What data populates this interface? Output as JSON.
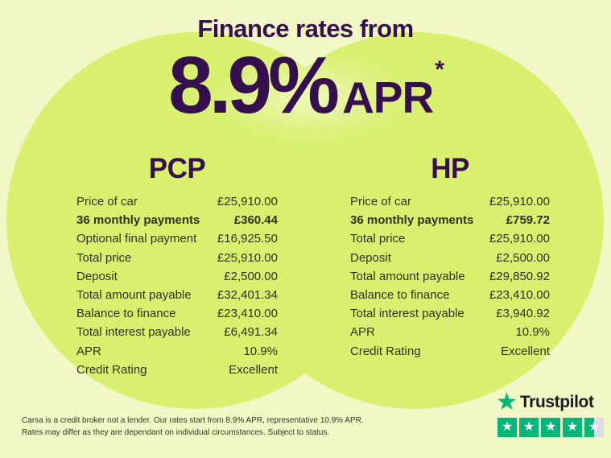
{
  "colors": {
    "background_pale": "#F1F8C5",
    "circle_lime": "#D8F06E",
    "heading_purple": "#36104E",
    "table_ink": "#2E321B",
    "tp_green": "#00B67A",
    "tp_gray": "#DCDCE6",
    "tp_word_dark": "#1B1B21"
  },
  "header": {
    "title": "Finance rates from",
    "rate": "8.9%",
    "rate_label": "APR",
    "asterisk": "*"
  },
  "pcp": {
    "heading": "PCP",
    "rows": [
      {
        "label": "Price of car",
        "value": "£25,910.00",
        "bold": false
      },
      {
        "label": "36 monthly payments",
        "value": "£360.44",
        "bold": true
      },
      {
        "label": "Optional final payment",
        "value": "£16,925.50",
        "bold": false
      },
      {
        "label": "Total price",
        "value": "£25,910.00",
        "bold": false
      },
      {
        "label": "Deposit",
        "value": "£2,500.00",
        "bold": false
      },
      {
        "label": "Total amount payable",
        "value": "£32,401.34",
        "bold": false
      },
      {
        "label": "Balance to finance",
        "value": "£23,410.00",
        "bold": false
      },
      {
        "label": "Total interest payable",
        "value": "£6,491.34",
        "bold": false
      },
      {
        "label": "APR",
        "value": "10.9%",
        "bold": false
      },
      {
        "label": "Credit Rating",
        "value": "Excellent",
        "bold": false
      }
    ]
  },
  "hp": {
    "heading": "HP",
    "rows": [
      {
        "label": "Price of car",
        "value": "£25,910.00",
        "bold": false
      },
      {
        "label": "36 monthly payments",
        "value": "£759.72",
        "bold": true
      },
      {
        "label": "Total price",
        "value": "£25,910.00",
        "bold": false
      },
      {
        "label": "Deposit",
        "value": "£2,500.00",
        "bold": false
      },
      {
        "label": "Total amount payable",
        "value": "£29,850.92",
        "bold": false
      },
      {
        "label": "Balance to finance",
        "value": "£23,410.00",
        "bold": false
      },
      {
        "label": "Total interest payable",
        "value": "£3,940.92",
        "bold": false
      },
      {
        "label": "APR",
        "value": "10.9%",
        "bold": false
      },
      {
        "label": "Credit Rating",
        "value": "Excellent",
        "bold": false
      }
    ]
  },
  "disclaimer": {
    "line1": "Carsa is a credit broker not a lender. Our rates start from 8.9% APR, representative 10.9% APR.",
    "line2": "Rates may differ as they are dependant on individual circumstances. Subject to status."
  },
  "trustpilot": {
    "brand": "Trustpilot",
    "rating": 4.5,
    "star_glyph": "★"
  }
}
